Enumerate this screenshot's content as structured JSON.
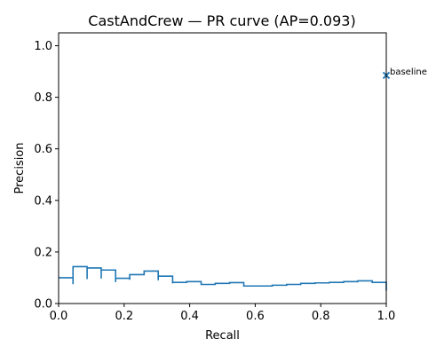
{
  "chart_data": {
    "type": "line",
    "title": "CastAndCrew — PR curve (AP=0.093)",
    "xlabel": "Recall",
    "ylabel": "Precision",
    "xlim": [
      0.0,
      1.0
    ],
    "ylim": [
      0.0,
      1.05
    ],
    "x_ticks": [
      "0.0",
      "0.2",
      "0.4",
      "0.6",
      "0.8",
      "1.0"
    ],
    "y_ticks": [
      "0.0",
      "0.2",
      "0.4",
      "0.6",
      "0.8",
      "1.0"
    ],
    "grid": false,
    "line_color": "#1f77b4",
    "series": [
      {
        "recall": [
          0.0,
          0.044,
          0.044,
          0.087,
          0.087,
          0.13,
          0.13,
          0.174,
          0.174,
          0.217,
          0.217,
          0.261,
          0.261,
          0.304,
          0.304,
          0.348,
          0.348,
          0.391,
          0.391,
          0.435,
          0.435,
          0.478,
          0.478,
          0.522,
          0.522,
          0.565,
          0.565,
          0.609,
          0.609,
          0.652,
          0.652,
          0.696,
          0.696,
          0.739,
          0.739,
          0.783,
          0.783,
          0.826,
          0.826,
          0.87,
          0.87,
          0.913,
          0.913,
          0.957,
          0.957,
          1.0,
          1.0
        ],
        "precision": [
          0.1,
          0.1,
          0.143,
          0.143,
          0.138,
          0.138,
          0.13,
          0.13,
          0.098,
          0.098,
          0.112,
          0.112,
          0.126,
          0.126,
          0.106,
          0.106,
          0.082,
          0.082,
          0.085,
          0.085,
          0.074,
          0.074,
          0.078,
          0.078,
          0.081,
          0.081,
          0.068,
          0.068,
          0.068,
          0.068,
          0.071,
          0.071,
          0.074,
          0.074,
          0.078,
          0.078,
          0.08,
          0.08,
          0.082,
          0.082,
          0.085,
          0.085,
          0.088,
          0.088,
          0.082,
          0.082,
          0.05
        ],
        "dips": [
          {
            "recall": 0.044,
            "precision": 0.075
          },
          {
            "recall": 0.087,
            "precision": 0.095
          },
          {
            "recall": 0.13,
            "precision": 0.097
          },
          {
            "recall": 0.174,
            "precision": 0.083
          },
          {
            "recall": 0.217,
            "precision": 0.092
          },
          {
            "recall": 0.304,
            "precision": 0.09
          },
          {
            "recall": 0.348,
            "precision": 0.078
          }
        ]
      }
    ],
    "baseline": {
      "label": "baseline",
      "recall": 1.0,
      "precision": 0.885,
      "marker": "x"
    }
  }
}
